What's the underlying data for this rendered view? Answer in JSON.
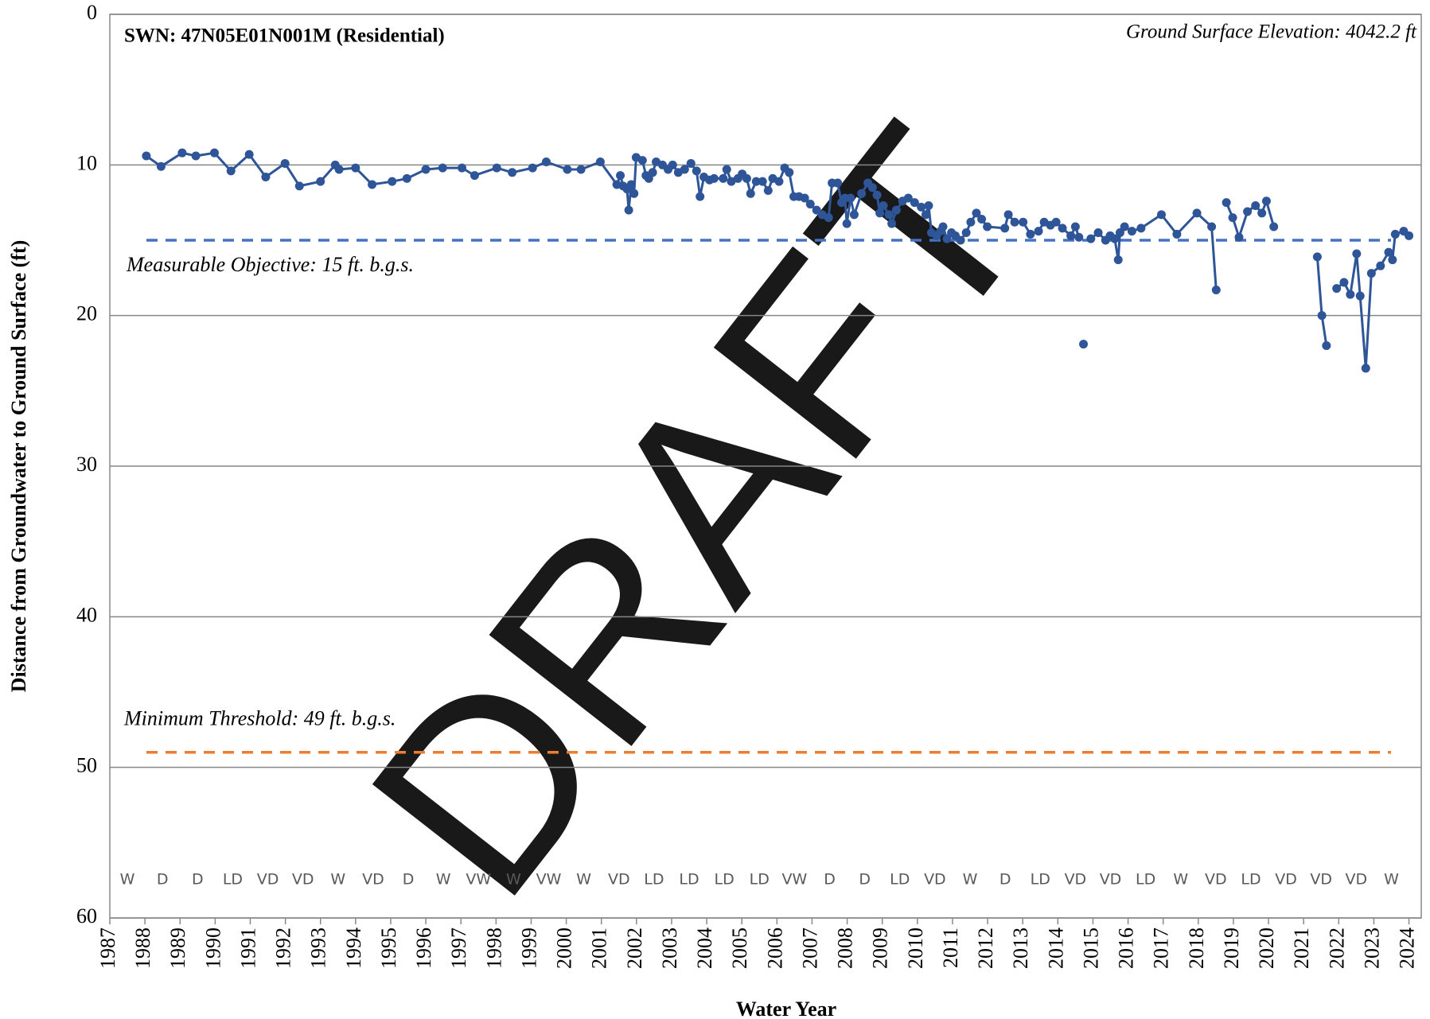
{
  "chart_data": {
    "type": "line",
    "title": "SWN: 47N05E01N001M (Residential)",
    "subtitle": "Ground Surface Elevation: 4042.2 ft",
    "xlabel": "Water Year",
    "ylabel": "Distance from Groundwater to Ground Surface (ft)",
    "watermark": "DRAFT",
    "xlim": [
      1987,
      2024.35
    ],
    "xticks": [
      1987,
      1988,
      1989,
      1990,
      1991,
      1992,
      1993,
      1994,
      1995,
      1996,
      1997,
      1998,
      1999,
      2000,
      2001,
      2002,
      2003,
      2004,
      2005,
      2006,
      2007,
      2008,
      2009,
      2010,
      2011,
      2012,
      2013,
      2014,
      2015,
      2016,
      2017,
      2018,
      2019,
      2020,
      2021,
      2022,
      2023,
      2024
    ],
    "ylim": [
      0,
      60
    ],
    "yticks": [
      0,
      10,
      20,
      30,
      40,
      50,
      60
    ],
    "y_inverted": true,
    "grid": true,
    "water_year_types": [
      "W",
      "D",
      "D",
      "LD",
      "VD",
      "VD",
      "W",
      "VD",
      "D",
      "W",
      "VW",
      "W",
      "VW",
      "W",
      "VD",
      "LD",
      "LD",
      "LD",
      "LD",
      "VW",
      "D",
      "D",
      "LD",
      "VD",
      "W",
      "D",
      "LD",
      "VD",
      "VD",
      "LD",
      "W",
      "VD",
      "LD",
      "VD",
      "VD",
      "VD",
      "W"
    ],
    "reference_lines": [
      {
        "label": "Measurable Objective: 15 ft. b.g.s.",
        "value": 15,
        "color": "#4472c4"
      },
      {
        "label": "Minimum Threshold: 49 ft. b.g.s.",
        "value": 49,
        "color": "#ed7d31"
      }
    ],
    "series": [
      {
        "color": "#2e5597",
        "x": [
          1988.04,
          1988.46,
          1989.06,
          1989.45,
          1989.98,
          1990.45,
          1990.97,
          1991.44,
          1991.99,
          1992.4,
          1993.0,
          1993.42,
          1993.53,
          1994.0,
          1994.47,
          1995.04,
          1995.46,
          1996.0,
          1996.48,
          1997.03,
          1997.39,
          1998.02,
          1998.46,
          1999.04,
          1999.43,
          2000.03,
          2000.42,
          2000.97,
          2001.44,
          2001.54,
          2001.62,
          2001.73,
          2001.78,
          2001.85,
          2001.93,
          2001.99,
          2002.17,
          2002.27,
          2002.35,
          2002.46,
          2002.56,
          2002.74,
          2002.9,
          2003.03,
          2003.19,
          2003.37,
          2003.55,
          2003.71,
          2003.81,
          2003.92,
          2004.08,
          2004.21,
          2004.47,
          2004.57,
          2004.7,
          2004.89,
          2005.01,
          2005.14,
          2005.25,
          2005.41,
          2005.59,
          2005.75,
          2005.88,
          2006.06,
          2006.22,
          2006.35,
          2006.48,
          2006.63,
          2006.79,
          2006.95,
          2007.13,
          2007.29,
          2007.47,
          2007.57,
          2007.73,
          2007.84,
          2007.94,
          2007.99,
          2008.1,
          2008.2,
          2008.41,
          2008.59,
          2008.72,
          2008.85,
          2008.93,
          2009.03,
          2009.19,
          2009.27,
          2009.4,
          2009.58,
          2009.74,
          2009.92,
          2010.11,
          2010.24,
          2010.32,
          2010.4,
          2010.55,
          2010.66,
          2010.73,
          2010.84,
          2010.97,
          2011.08,
          2011.23,
          2011.39,
          2011.52,
          2011.68,
          2011.83,
          2011.99,
          2012.49,
          2012.59,
          2012.77,
          2013.01,
          2013.22,
          2013.45,
          2013.61,
          2013.79,
          2013.95,
          2014.13,
          2014.37,
          2014.5,
          2014.6,
          null,
          2014.73,
          null,
          2014.94,
          2015.15,
          2015.36,
          2015.49,
          2015.62,
          2015.72,
          2015.77,
          2015.9,
          2016.11,
          2016.37,
          2016.95,
          2017.39,
          2017.96,
          2018.38,
          2018.51,
          null,
          2018.8,
          2018.98,
          2019.16,
          2019.4,
          2019.63,
          2019.81,
          2019.94,
          2020.15,
          null,
          2021.39,
          2021.52,
          2021.65,
          null,
          2021.94,
          2022.15,
          2022.33,
          2022.51,
          2022.61,
          2022.77,
          2022.93,
          2023.19,
          2023.42,
          2023.53,
          2023.61,
          2023.85,
          2024.0
        ],
        "values": [
          9.4,
          10.1,
          9.2,
          9.4,
          9.2,
          10.4,
          9.3,
          10.8,
          9.9,
          11.4,
          11.1,
          10.0,
          10.3,
          10.2,
          11.3,
          11.1,
          10.9,
          10.3,
          10.2,
          10.2,
          10.7,
          10.2,
          10.5,
          10.2,
          9.8,
          10.3,
          10.3,
          9.8,
          11.3,
          10.7,
          11.4,
          11.6,
          13.0,
          11.3,
          11.9,
          9.5,
          9.7,
          10.7,
          10.9,
          10.5,
          9.8,
          10.0,
          10.3,
          10.0,
          10.5,
          10.3,
          9.9,
          10.4,
          12.1,
          10.8,
          11.0,
          10.9,
          10.9,
          10.3,
          11.1,
          10.9,
          10.6,
          10.9,
          11.9,
          11.1,
          11.1,
          11.7,
          10.9,
          11.1,
          10.2,
          10.5,
          12.1,
          12.1,
          12.2,
          12.6,
          13.0,
          13.3,
          13.5,
          11.2,
          11.2,
          12.5,
          12.2,
          13.9,
          12.2,
          13.3,
          11.9,
          11.2,
          11.5,
          12.0,
          13.2,
          12.7,
          13.3,
          13.9,
          13.0,
          12.4,
          12.2,
          12.5,
          12.8,
          13.3,
          12.7,
          14.5,
          14.7,
          14.4,
          14.1,
          14.9,
          14.5,
          14.7,
          15.0,
          14.5,
          13.8,
          13.2,
          13.6,
          14.1,
          14.2,
          13.3,
          13.8,
          13.8,
          14.6,
          14.4,
          13.8,
          14.0,
          13.8,
          14.2,
          14.7,
          14.1,
          14.8,
          null,
          21.9,
          null,
          14.9,
          14.5,
          15.0,
          14.7,
          14.9,
          16.3,
          14.5,
          14.1,
          14.4,
          14.2,
          13.3,
          14.6,
          13.2,
          14.1,
          18.3,
          null,
          12.5,
          13.5,
          14.8,
          13.1,
          12.7,
          13.2,
          12.4,
          14.1,
          null,
          16.1,
          20.0,
          22.0,
          null,
          18.2,
          17.8,
          18.6,
          15.9,
          18.7,
          23.5,
          17.2,
          16.7,
          15.8,
          16.3,
          14.6,
          14.4,
          14.7
        ]
      }
    ]
  }
}
